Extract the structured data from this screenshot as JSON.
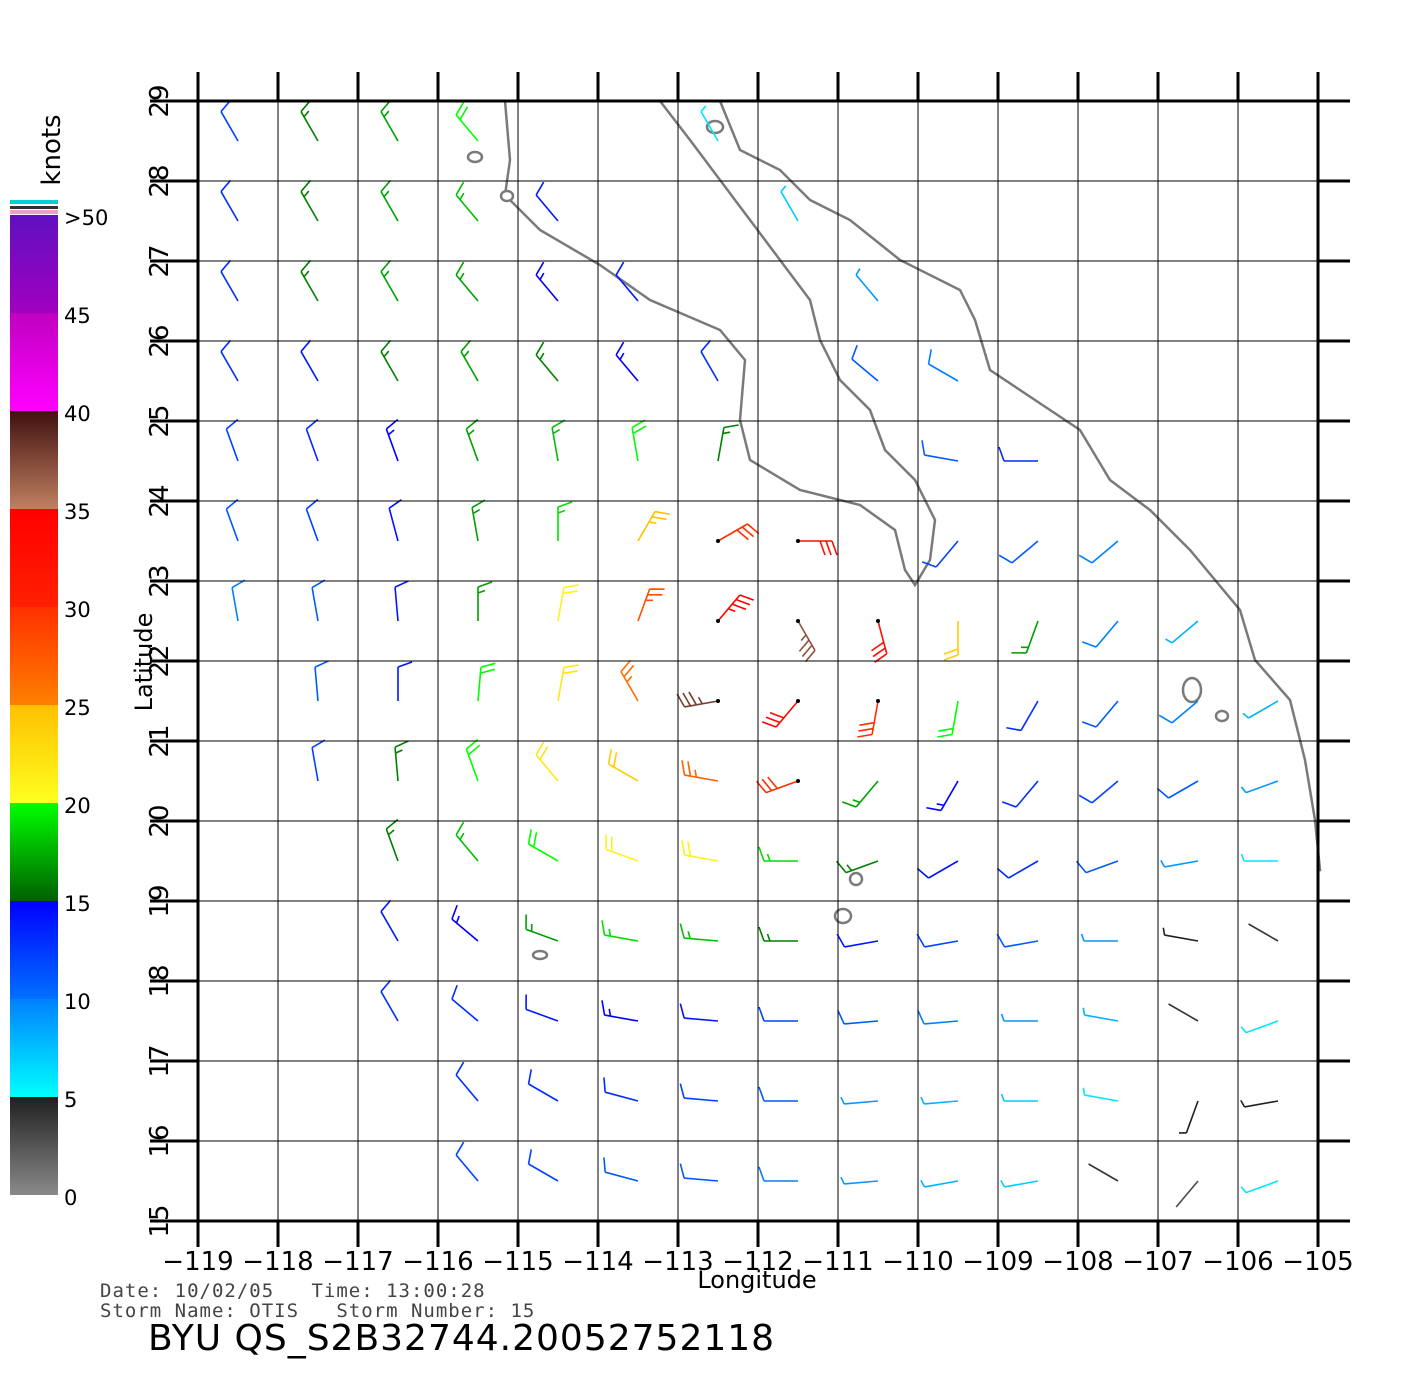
{
  "map": {
    "xlabel": "Longitude",
    "ylabel": "Latitude",
    "xlim": [
      -119,
      -105
    ],
    "ylim": [
      15,
      29
    ],
    "xticks": [
      {
        "value": -119,
        "label": "−119"
      },
      {
        "value": -118,
        "label": "−118"
      },
      {
        "value": -117,
        "label": "−117"
      },
      {
        "value": -116,
        "label": "−116"
      },
      {
        "value": -115,
        "label": "−115"
      },
      {
        "value": -114,
        "label": "−114"
      },
      {
        "value": -113,
        "label": "−113"
      },
      {
        "value": -112,
        "label": "−112"
      },
      {
        "value": -111,
        "label": "−111"
      },
      {
        "value": -110,
        "label": "−110"
      },
      {
        "value": -109,
        "label": "−109"
      },
      {
        "value": -108,
        "label": "−108"
      },
      {
        "value": -107,
        "label": "−107"
      },
      {
        "value": -106,
        "label": "−106"
      },
      {
        "value": -105,
        "label": "−105"
      }
    ],
    "yticks": [
      15,
      16,
      17,
      18,
      19,
      20,
      21,
      22,
      23,
      24,
      25,
      26,
      27,
      28,
      29
    ],
    "grid": true,
    "colorbar": {
      "title": "knots",
      "lim": [
        0,
        50
      ],
      "ticks": [
        0,
        5,
        10,
        15,
        20,
        25,
        30,
        35,
        40,
        45,
        {
          "value": 50,
          "label": ">50"
        }
      ],
      "colors": [
        [
          "#8a8a8a",
          "#202020"
        ],
        [
          "#00ffff",
          "#0080ff"
        ],
        [
          "#0070ff",
          "#0000ff"
        ],
        [
          "#006000",
          "#00ff00"
        ],
        [
          "#ffff20",
          "#ffc000"
        ],
        [
          "#ff8000",
          "#ff3000"
        ],
        [
          "#ff2000",
          "#ff0000"
        ],
        [
          "#c08060",
          "#401010"
        ],
        [
          "#ff00ff",
          "#c000c0"
        ],
        [
          "#a000c0",
          "#6010c0"
        ]
      ]
    },
    "lon": [
      -118.5,
      -117.5,
      -116.5,
      -115.5,
      -114.5,
      -113.5,
      -112.5,
      -111.5,
      -110.5,
      -109.5,
      -108.5,
      -107.5,
      -106.5,
      -105.5
    ],
    "lat": [
      28.5,
      27.5,
      26.5,
      25.5,
      24.5,
      23.5,
      22.5,
      21.5,
      20.5,
      19.5,
      18.5,
      17.5,
      16.5,
      15.5
    ],
    "wind_speed": [
      [
        12,
        16,
        17,
        20,
        null,
        null,
        6,
        null,
        null,
        null,
        null,
        null,
        null,
        null
      ],
      [
        13,
        16,
        17,
        18,
        14,
        null,
        null,
        7,
        null,
        null,
        null,
        null,
        null,
        null
      ],
      [
        13,
        16,
        17,
        17,
        15,
        14,
        null,
        null,
        9,
        null,
        null,
        null,
        null,
        null
      ],
      [
        13,
        14,
        16,
        17,
        16,
        15,
        13,
        null,
        11,
        10,
        null,
        null,
        null,
        null
      ],
      [
        12,
        13,
        15,
        17,
        18,
        20,
        16,
        null,
        null,
        11,
        13,
        null,
        null,
        null
      ],
      [
        11,
        12,
        14,
        17,
        19,
        25,
        30,
        33,
        null,
        12,
        11,
        10,
        null,
        null
      ],
      [
        10,
        11,
        14,
        17,
        21,
        28,
        35,
        37,
        33,
        24,
        17,
        10,
        8,
        null
      ],
      [
        null,
        11,
        14,
        20,
        22,
        26,
        38,
        34,
        30,
        20,
        13,
        11,
        10,
        8
      ],
      [
        null,
        12,
        16,
        20,
        22,
        24,
        27,
        30,
        17,
        15,
        13,
        12,
        11,
        9
      ],
      [
        null,
        null,
        16,
        18,
        20,
        21,
        21,
        19,
        16,
        14,
        13,
        11,
        9,
        6
      ],
      [
        null,
        null,
        14,
        15,
        17,
        19,
        18,
        16,
        14,
        12,
        11,
        9,
        5,
        4
      ],
      [
        null,
        null,
        13,
        13,
        14,
        15,
        14,
        12,
        11,
        10,
        9,
        8,
        4,
        6
      ],
      [
        null,
        null,
        null,
        13,
        13,
        13,
        12,
        11,
        9,
        8,
        7,
        6,
        5,
        5
      ],
      [
        null,
        null,
        null,
        12,
        12,
        11,
        11,
        10,
        9,
        8,
        7,
        4,
        3,
        6
      ]
    ],
    "wind_dir": [
      [
        330,
        330,
        330,
        320,
        null,
        null,
        330,
        null,
        null,
        null,
        null,
        null,
        null,
        null
      ],
      [
        330,
        330,
        330,
        320,
        320,
        null,
        null,
        330,
        null,
        null,
        null,
        null,
        null,
        null
      ],
      [
        330,
        330,
        330,
        320,
        320,
        320,
        null,
        null,
        320,
        null,
        null,
        null,
        null,
        null
      ],
      [
        330,
        330,
        330,
        330,
        320,
        320,
        330,
        null,
        310,
        300,
        null,
        null,
        null,
        null
      ],
      [
        340,
        340,
        340,
        340,
        350,
        350,
        10,
        null,
        null,
        280,
        270,
        null,
        null,
        null
      ],
      [
        340,
        340,
        345,
        350,
        0,
        30,
        60,
        90,
        null,
        220,
        230,
        230,
        null,
        null
      ],
      [
        350,
        350,
        355,
        0,
        10,
        20,
        40,
        150,
        165,
        180,
        200,
        220,
        230,
        null
      ],
      [
        null,
        355,
        0,
        5,
        10,
        330,
        260,
        220,
        190,
        190,
        210,
        220,
        230,
        240
      ],
      [
        null,
        350,
        355,
        340,
        320,
        300,
        280,
        250,
        220,
        210,
        220,
        230,
        240,
        250
      ],
      [
        null,
        null,
        340,
        320,
        300,
        290,
        280,
        270,
        250,
        240,
        240,
        250,
        260,
        270
      ],
      [
        null,
        null,
        330,
        310,
        290,
        280,
        275,
        270,
        260,
        260,
        260,
        270,
        280,
        300
      ],
      [
        null,
        null,
        330,
        310,
        290,
        280,
        275,
        270,
        265,
        265,
        270,
        280,
        300,
        250
      ],
      [
        null,
        null,
        null,
        320,
        300,
        285,
        275,
        270,
        265,
        265,
        270,
        280,
        200,
        260
      ],
      [
        null,
        null,
        null,
        320,
        300,
        285,
        275,
        270,
        265,
        260,
        260,
        300,
        220,
        250
      ]
    ],
    "footer": {
      "line1": "Date: 10/02/05   Time: 13:00:28",
      "line2": "Storm Name: OTIS   Storm Number: 15",
      "product": "BYU QS_S2B32744.20052752118"
    }
  }
}
